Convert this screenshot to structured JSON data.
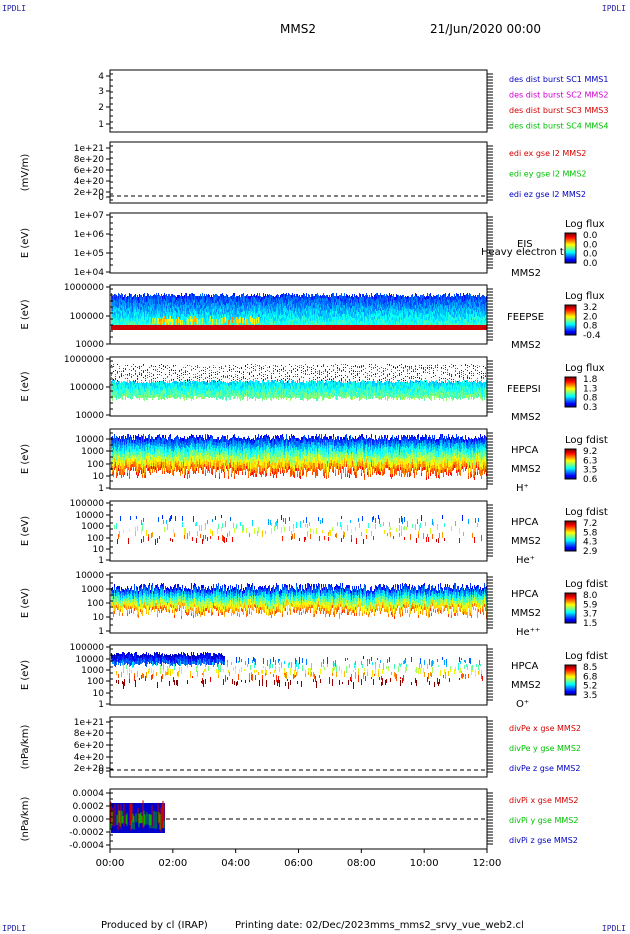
{
  "corners": {
    "tl": "IPDLI",
    "tr": "IPDLI",
    "bl": "IPDLI",
    "br": "IPDLI"
  },
  "header": {
    "spacecraft": "MMS2",
    "datetime": "21/Jun/2020 00:00"
  },
  "footer": {
    "produced_by": "Produced by cl (IRAP)",
    "printing_date": "Printing date: 02/Dec/2023",
    "file": "mms_mms2_srvy_vue_web2.cl"
  },
  "colors": {
    "red": "#d40000",
    "green": "#00c000",
    "blue": "#0000c0",
    "magenta": "#d000d0"
  },
  "chart_data": {
    "type": "heatmap",
    "x": {
      "ticks": [
        "00:00",
        "02:00",
        "04:00",
        "06:00",
        "08:00",
        "10:00",
        "12:00"
      ],
      "range_hours": [
        0,
        12
      ]
    },
    "panels": [
      {
        "id": "burst",
        "type": "line",
        "ylabel": "",
        "ticks": [
          "4",
          "3",
          "2",
          "1"
        ],
        "legend": [
          {
            "text": "des dist burst SC1 MMS1",
            "color": "blue"
          },
          {
            "text": "des dist burst SC2 MMS2",
            "color": "magenta"
          },
          {
            "text": "des dist burst SC3 MMS3",
            "color": "red"
          },
          {
            "text": "des dist burst SC4 MMS4",
            "color": "green"
          }
        ]
      },
      {
        "id": "edi",
        "type": "line",
        "ylabel": "(mV/m)",
        "ticks": [
          "1e+21",
          "8e+20",
          "6e+20",
          "4e+20",
          "2e+20",
          "0"
        ],
        "legend": [
          {
            "text": "edi ex gse l2 MMS2",
            "color": "red"
          },
          {
            "text": "edi ey gse l2 MMS2",
            "color": "green"
          },
          {
            "text": "edi ez gse l2 MMS2",
            "color": "blue"
          }
        ]
      },
      {
        "id": "eis",
        "type": "heatmap",
        "ylabel": "E (eV)",
        "ticks": [
          "1e+07",
          "1e+06",
          "1e+05",
          "1e+04"
        ],
        "labels": [
          "EIS",
          "MMS2"
        ],
        "overlay": "Heavy electron to",
        "cbar": {
          "title": "Log flux",
          "ticks": [
            "0.0",
            "0.0",
            "0.0",
            "0.0"
          ]
        }
      },
      {
        "id": "feepse",
        "type": "heatmap",
        "ylabel": "E (eV)",
        "ticks": [
          "1000000",
          "100000",
          "10000"
        ],
        "labels": [
          "FEEPSE",
          "MMS2"
        ],
        "cbar": {
          "title": "Log flux",
          "ticks": [
            "3.2",
            "2.0",
            "0.8",
            "-0.4"
          ]
        }
      },
      {
        "id": "feepsi",
        "type": "heatmap",
        "ylabel": "E (eV)",
        "ticks": [
          "1000000",
          "100000",
          "10000"
        ],
        "labels": [
          "FEEPSI",
          "MMS2"
        ],
        "cbar": {
          "title": "Log flux",
          "ticks": [
            "1.8",
            "1.3",
            "0.8",
            "0.3"
          ]
        }
      },
      {
        "id": "hpca_h",
        "type": "heatmap",
        "ylabel": "E (eV)",
        "ticks": [
          "10000",
          "1000",
          "100",
          "10",
          "1"
        ],
        "labels": [
          "HPCA",
          "MMS2",
          "H⁺"
        ],
        "cbar": {
          "title": "Log fdist",
          "ticks": [
            "9.2",
            "6.3",
            "3.5",
            "0.6"
          ]
        }
      },
      {
        "id": "hpca_he",
        "type": "heatmap",
        "ylabel": "E (eV)",
        "ticks": [
          "100000",
          "10000",
          "1000",
          "100",
          "10",
          "1"
        ],
        "labels": [
          "HPCA",
          "MMS2",
          "He⁺"
        ],
        "cbar": {
          "title": "Log fdist",
          "ticks": [
            "7.2",
            "5.8",
            "4.3",
            "2.9"
          ]
        }
      },
      {
        "id": "hpca_hepp",
        "type": "heatmap",
        "ylabel": "E (eV)",
        "ticks": [
          "10000",
          "1000",
          "100",
          "10",
          "1"
        ],
        "labels": [
          "HPCA",
          "MMS2",
          "He⁺⁺"
        ],
        "cbar": {
          "title": "Log fdist",
          "ticks": [
            "8.0",
            "5.9",
            "3.7",
            "1.5"
          ]
        }
      },
      {
        "id": "hpca_o",
        "type": "heatmap",
        "ylabel": "E (eV)",
        "ticks": [
          "100000",
          "10000",
          "1000",
          "100",
          "10",
          "1"
        ],
        "labels": [
          "HPCA",
          "MMS2",
          "O⁺"
        ],
        "cbar": {
          "title": "Log fdist",
          "ticks": [
            "8.5",
            "6.8",
            "5.2",
            "3.5"
          ]
        }
      },
      {
        "id": "divpe",
        "type": "line",
        "ylabel": "(nPa/km)",
        "ticks": [
          "1e+21",
          "8e+20",
          "6e+20",
          "4e+20",
          "2e+20",
          "0"
        ],
        "legend": [
          {
            "text": "divPe x gse MMS2",
            "color": "red"
          },
          {
            "text": "divPe y gse MMS2",
            "color": "green"
          },
          {
            "text": "divPe z gse MMS2",
            "color": "blue"
          }
        ]
      },
      {
        "id": "divpi",
        "type": "line",
        "ylabel": "(nPa/km)",
        "ticks": [
          "0.0004",
          "0.0002",
          "0.0000",
          "-0.0002",
          "-0.0004"
        ],
        "legend": [
          {
            "text": "divPi x gse MMS2",
            "color": "red"
          },
          {
            "text": "divPi y gse MMS2",
            "color": "green"
          },
          {
            "text": "divPi z gse MMS2",
            "color": "blue"
          }
        ],
        "data_hours": [
          0,
          1.75
        ]
      }
    ]
  }
}
